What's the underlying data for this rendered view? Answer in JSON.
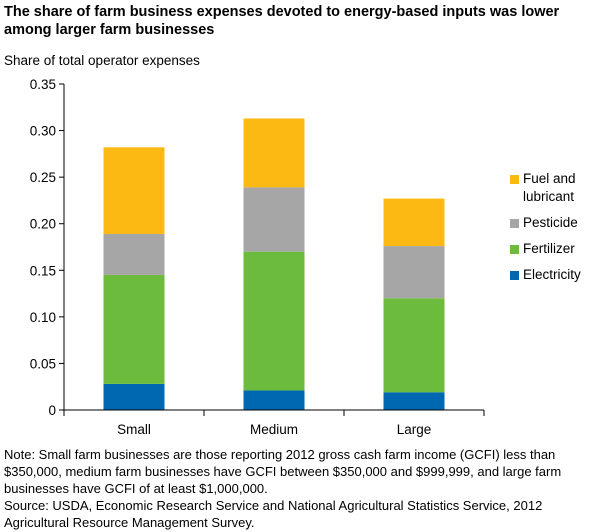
{
  "title": "The share of farm business expenses devoted to energy-based inputs was lower among larger farm businesses",
  "note": "Note: Small farm businesses are those reporting 2012 gross cash farm income (GCFI) less than $350,000, medium farm businesses have GCFI between $350,000 and $999,999, and large farm businesses have GCFI of at least $1,000,000.",
  "source": "Source: USDA, Economic Research Service and National Agricultural Statistics Service, 2012 Agricultural Resource Management Survey.",
  "chart_data": {
    "type": "bar",
    "stacked": true,
    "title": "",
    "ylabel": "Share of total operator expenses",
    "xlabel": "",
    "ylim": [
      0,
      0.35
    ],
    "yticks": [
      "0",
      "0.05",
      "0.10",
      "0.15",
      "0.20",
      "0.25",
      "0.30",
      "0.35"
    ],
    "grid": false,
    "legend": "right",
    "categories": [
      "Small",
      "Medium",
      "Large"
    ],
    "series": [
      {
        "name": "Electricity",
        "color": "#0067b1",
        "values": [
          0.028,
          0.021,
          0.019
        ]
      },
      {
        "name": "Fertilizer",
        "color": "#6cbb3c",
        "values": [
          0.117,
          0.149,
          0.101
        ]
      },
      {
        "name": "Pesticide",
        "color": "#a6a6a6",
        "values": [
          0.044,
          0.069,
          0.056
        ]
      },
      {
        "name": "Fuel and lubricant",
        "color": "#fdb913",
        "values": [
          0.093,
          0.074,
          0.051
        ]
      }
    ]
  }
}
